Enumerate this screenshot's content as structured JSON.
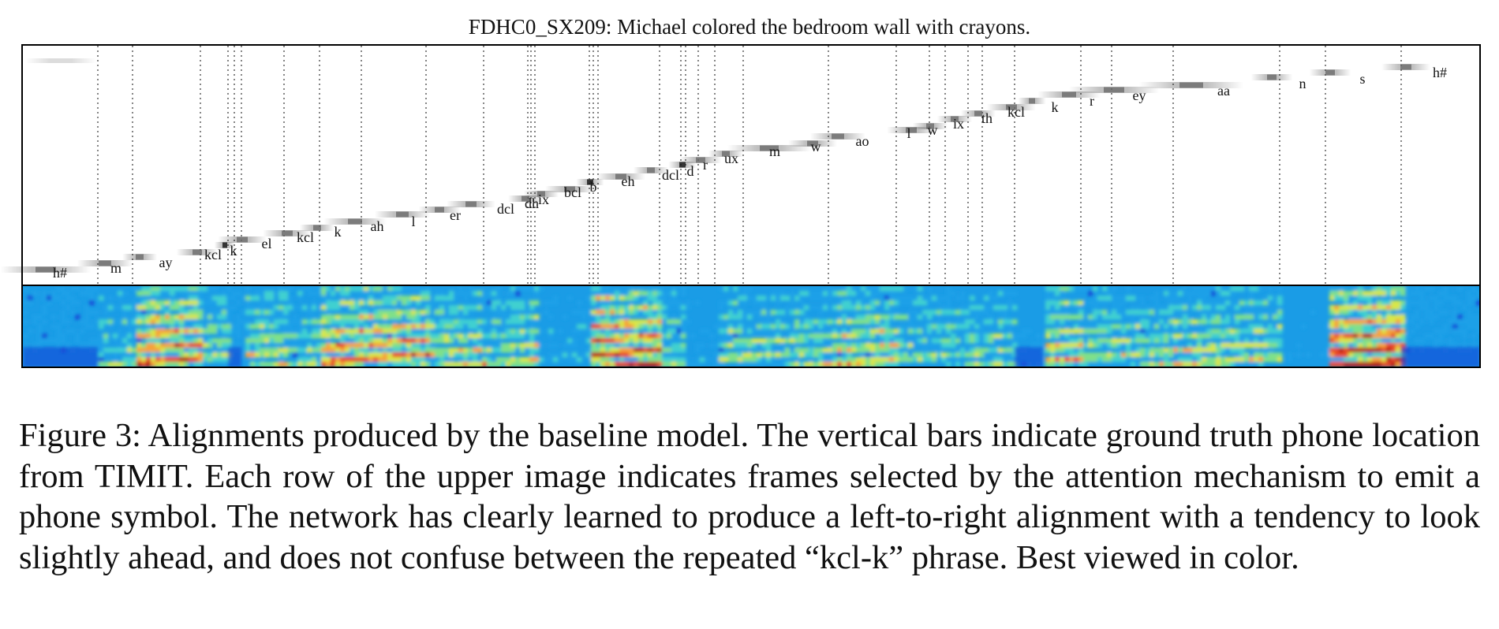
{
  "figure": {
    "title": "FDHC0_SX209: Michael colored the bedroom wall with crayons.",
    "phones": [
      "h#",
      "m",
      "ay",
      "kcl",
      "k",
      "el",
      "kcl",
      "k",
      "ah",
      "l",
      "er",
      "dcl",
      "dh",
      "ix",
      "bcl",
      "b",
      "eh",
      "dcl",
      "d",
      "r",
      "ux",
      "m",
      "w",
      "ao",
      "l",
      "w",
      "ix",
      "th",
      "kcl",
      "k",
      "r",
      "ey",
      "aa",
      "n",
      "s",
      "h#"
    ],
    "colormap": [
      "#0b1e8f",
      "#1550d8",
      "#1aa0e8",
      "#3fd0d0",
      "#7fe08a",
      "#d8e64a",
      "#f5a23a",
      "#e8482a",
      "#b81414"
    ]
  },
  "caption": {
    "text": "Figure 3:  Alignments produced by the baseline model.  The vertical bars indicate ground truth phone location from TIMIT. Each row of the upper image indicates frames selected by the attention mechanism to emit a phone symbol.  The network has clearly learned to produce a left-to-right alignment with a tendency to look slightly ahead, and does not confuse between the repeated “kcl-k” phrase. Best viewed in color."
  }
}
